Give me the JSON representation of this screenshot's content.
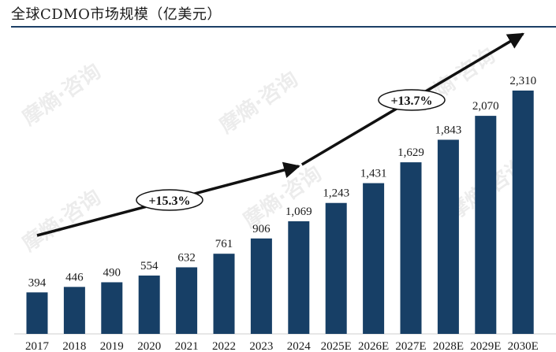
{
  "title": "全球CDMO市场规模（亿美元）",
  "watermark": "摩熵·咨询",
  "chart_data": {
    "type": "bar",
    "categories": [
      "2017",
      "2018",
      "2019",
      "2020",
      "2021",
      "2022",
      "2023",
      "2024",
      "2025E",
      "2026E",
      "2027E",
      "2028E",
      "2029E",
      "2030E"
    ],
    "values": [
      394,
      446,
      490,
      554,
      632,
      761,
      906,
      1069,
      1243,
      1431,
      1629,
      1843,
      2070,
      2310
    ],
    "value_labels": [
      "394",
      "446",
      "490",
      "554",
      "632",
      "761",
      "906",
      "1,069",
      "1,243",
      "1,431",
      "1,629",
      "1,843",
      "2,070",
      "2,310"
    ],
    "ylim": [
      0,
      2310
    ],
    "bar_color": "#173f66",
    "annotations": [
      {
        "text": "+15.3%",
        "from": "2017",
        "to": "2024"
      },
      {
        "text": "+13.7%",
        "from": "2024",
        "to": "2030E"
      }
    ]
  }
}
